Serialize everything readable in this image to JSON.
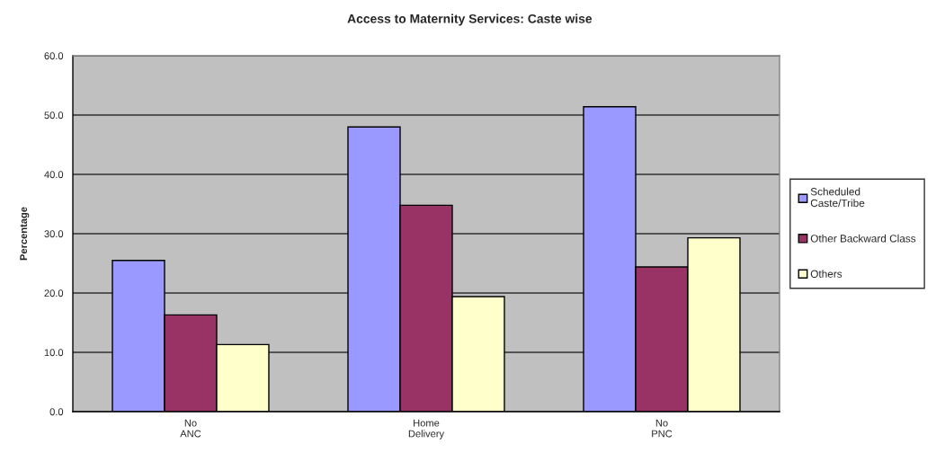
{
  "chart_data": {
    "type": "bar",
    "title": "Access to Maternity Services: Caste wise",
    "ylabel": "Percentage",
    "categories": [
      "No\nANC",
      "Home\nDelivery",
      "No\nPNC"
    ],
    "series": [
      {
        "name": "Scheduled\nCaste/Tribe",
        "color": "#9999ff",
        "values": [
          25.5,
          48.0,
          51.4
        ]
      },
      {
        "name": "Other Backward Class",
        "color": "#993366",
        "values": [
          16.3,
          34.8,
          24.4
        ]
      },
      {
        "name": "Others",
        "color": "#ffffcc",
        "values": [
          11.3,
          19.4,
          29.3
        ]
      }
    ],
    "ylim": [
      0,
      60
    ],
    "yticks": [
      {
        "value": 0,
        "label": "0.0"
      },
      {
        "value": 10,
        "label": "10.0"
      },
      {
        "value": 20,
        "label": "20.0"
      },
      {
        "value": 30,
        "label": "30.0"
      },
      {
        "value": 40,
        "label": "40.0"
      },
      {
        "value": 50,
        "label": "50.0"
      },
      {
        "value": 60,
        "label": "60.0"
      }
    ],
    "grid": "y",
    "legend": "right"
  }
}
